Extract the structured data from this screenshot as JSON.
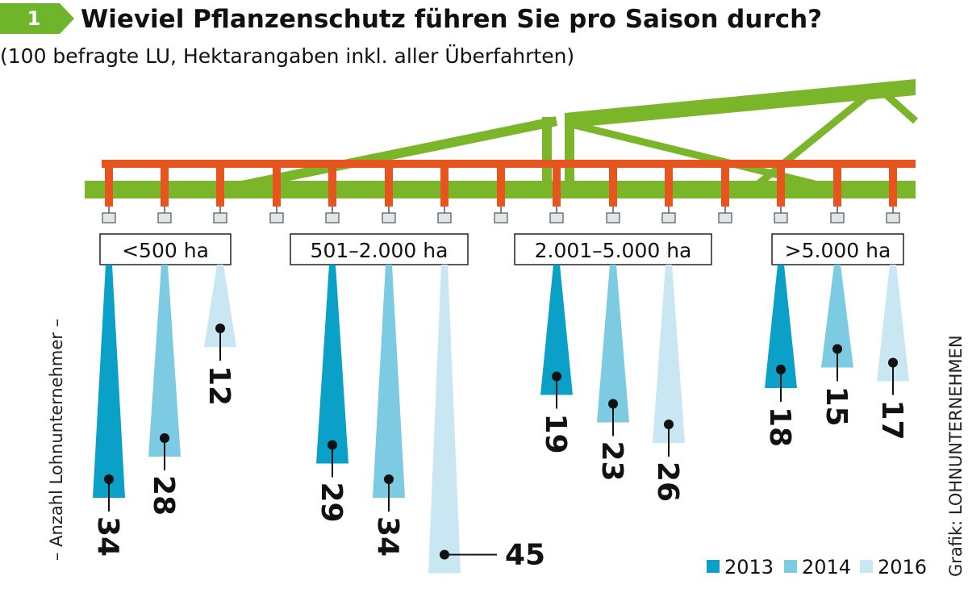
{
  "header": {
    "badge_number": "1",
    "title": "Wieviel Pflanzenschutz führen Sie pro Saison durch?",
    "subtitle": "(100 befragte LU, Hektarangaben inkl. aller Überfahrten)"
  },
  "side_label": "– Anzahl Lohnunternehmer –",
  "credit": "Grafik: LOHNUNTERNEHMEN",
  "colors": {
    "2013": "#0aa0c7",
    "2014": "#7ccbe3",
    "2016": "#c8e7f2",
    "boom_green": "#7ab52a",
    "boom_orange": "#e8541e",
    "badge_green": "#6fb52c"
  },
  "chart_data": {
    "type": "bar",
    "title": "Wieviel Pflanzenschutz führen Sie pro Saison durch?",
    "subtitle": "(100 befragte LU, Hektarangaben inkl. aller Überfahrten)",
    "ylabel": "– Anzahl Lohnunternehmer –",
    "xlabel": "",
    "legend_position": "bottom-right",
    "categories": [
      "<500 ha",
      "501–2.000 ha",
      "2.001–5.000 ha",
      ">5.000 ha"
    ],
    "series": [
      {
        "name": "2013",
        "values": [
          34,
          29,
          19,
          18
        ]
      },
      {
        "name": "2014",
        "values": [
          28,
          34,
          23,
          15
        ]
      },
      {
        "name": "2016",
        "values": [
          12,
          45,
          26,
          17
        ]
      }
    ]
  }
}
